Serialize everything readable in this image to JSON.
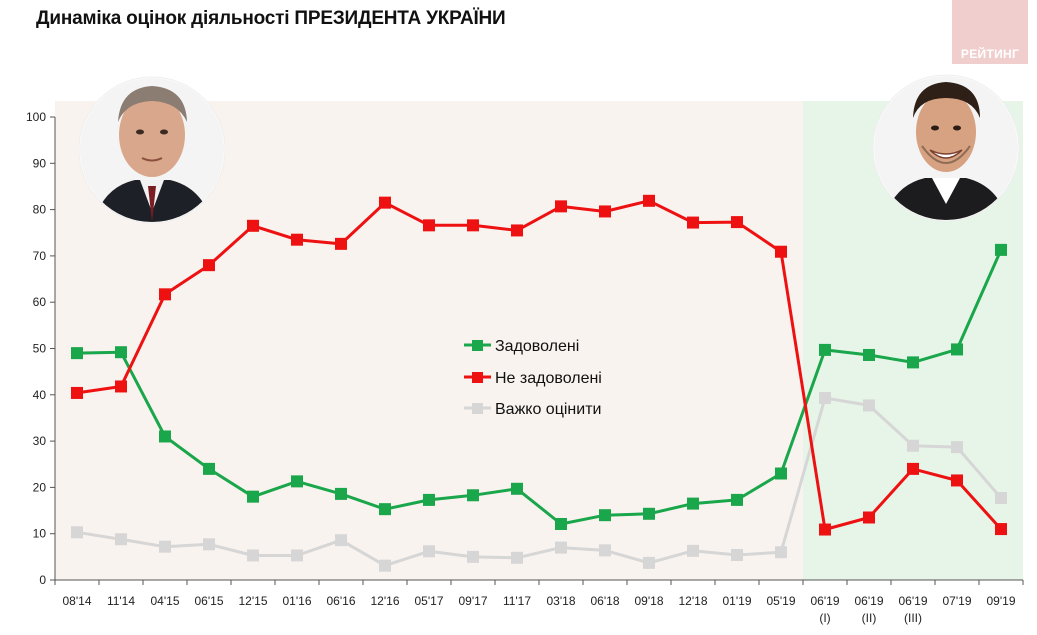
{
  "header": {
    "title": "Динаміка оцінок діяльності ПРЕЗИДЕНТА УКРАЇНИ",
    "logo": "РЕЙТИНГ"
  },
  "colors": {
    "satisfied": "#1aa64a",
    "unsatisfied": "#ee1111",
    "hard": "#d6d6d6",
    "zone_left": "#f9f3ef",
    "zone_right": "#e6f5e8"
  },
  "portraits": {
    "left": "portrait-poroshenko",
    "right": "portrait-zelensky"
  },
  "chart_data": {
    "type": "line",
    "title": "Динаміка оцінок діяльності ПРЕЗИДЕНТА УКРАЇНИ",
    "xlabel": "",
    "ylabel": "",
    "ylim": [
      0,
      100
    ],
    "yticks": [
      "0",
      "10",
      "20",
      "30",
      "40",
      "50",
      "60",
      "70",
      "80",
      "90",
      "100"
    ],
    "categories": [
      "08'14",
      "11'14",
      "04'15",
      "06'15",
      "12'15",
      "01'16",
      "06'16",
      "12'16",
      "05'17",
      "09'17",
      "11'17",
      "03'18",
      "06'18",
      "09'18",
      "12'18",
      "01'19",
      "05'19",
      "06'19",
      "06'19",
      "06'19",
      "07'19",
      "09'19"
    ],
    "sublabels": [
      "",
      "",
      "",
      "",
      "",
      "",
      "",
      "",
      "",
      "",
      "",
      "",
      "",
      "",
      "",
      "",
      "",
      "(I)",
      "(II)",
      "(III)",
      "",
      ""
    ],
    "series": [
      {
        "name": "Задоволені",
        "key": "satisfied",
        "values": [
          49,
          49.2,
          31,
          24,
          18,
          21.3,
          18.6,
          15.3,
          17.3,
          18.3,
          19.7,
          12.1,
          14,
          14.3,
          16.5,
          17.3,
          23,
          49.7,
          48.6,
          47,
          49.8,
          71.3
        ]
      },
      {
        "name": "Не задоволені",
        "key": "unsatisfied",
        "values": [
          40.4,
          41.8,
          61.7,
          68,
          76.5,
          73.5,
          72.6,
          81.5,
          76.6,
          76.6,
          75.5,
          80.7,
          79.6,
          81.9,
          77.2,
          77.3,
          70.9,
          10.9,
          13.5,
          24,
          21.5,
          11
        ]
      },
      {
        "name": "Важко оцінити",
        "key": "hard",
        "values": [
          10.3,
          8.8,
          7.2,
          7.7,
          5.3,
          5.3,
          8.6,
          3.1,
          6.2,
          5,
          4.8,
          7,
          6.4,
          3.7,
          6.3,
          5.4,
          6,
          39.3,
          37.7,
          29,
          28.7,
          17.7
        ]
      }
    ],
    "legend_position": "center",
    "grid": false
  }
}
